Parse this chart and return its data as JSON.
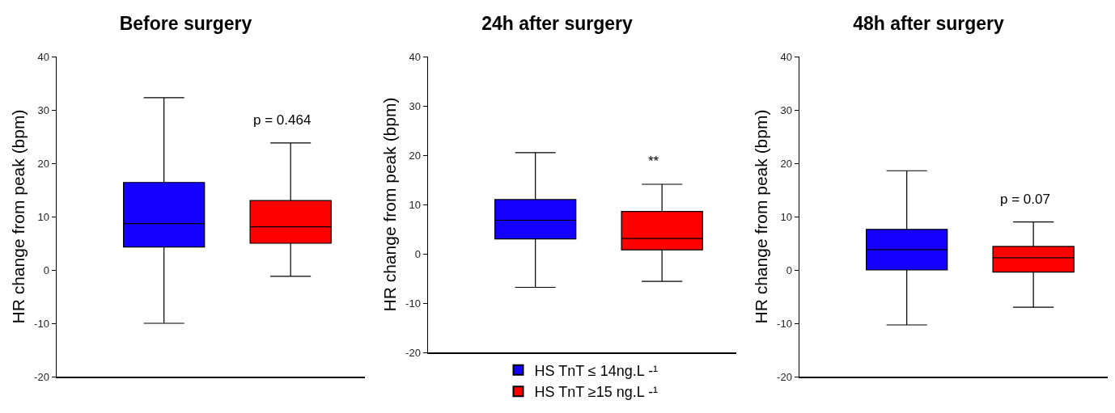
{
  "chart_data": [
    {
      "type": "box",
      "title": "Before surgery",
      "ylabel": "HR change from peak (bpm)",
      "categories": [
        null
      ],
      "ylim": [
        -20,
        40
      ],
      "yticks": [
        -20,
        -10,
        0,
        10,
        20,
        30,
        40
      ],
      "grid": false,
      "legend": false,
      "annotations": [
        "p = 0.464"
      ],
      "series": [
        {
          "color": "#1400ff",
          "boxes": [
            {
              "low": -10,
              "q1": 4.3,
              "median": 8.7,
              "q3": 16.4,
              "high": 32.3
            }
          ]
        },
        {
          "color": "#ff0000",
          "boxes": [
            {
              "low": -1.2,
              "q1": 5,
              "median": 8.1,
              "q3": 13,
              "high": 23.8
            }
          ]
        }
      ]
    },
    {
      "type": "box",
      "title": "24h after surgery",
      "ylabel": "HR change from peak (bpm)",
      "categories": [
        null
      ],
      "ylim": [
        -20,
        40
      ],
      "yticks": [
        -20,
        -10,
        0,
        10,
        20,
        30,
        40
      ],
      "grid": false,
      "legend": "bottom",
      "annotations": [
        "**"
      ],
      "series": [
        {
          "name": "HS TnT ≤ 14ng.L -¹",
          "color": "#1400ff",
          "boxes": [
            {
              "low": -6.8,
              "q1": 3,
              "median": 6.8,
              "q3": 11,
              "high": 20.5
            }
          ]
        },
        {
          "name": "HS TnT ≥15 ng.L -¹",
          "color": "#ff0000",
          "boxes": [
            {
              "low": -5.6,
              "q1": 0.8,
              "median": 3.1,
              "q3": 8.6,
              "high": 14.1
            }
          ]
        }
      ]
    },
    {
      "type": "box",
      "title": "48h after surgery",
      "ylabel": "HR change from peak (bpm)",
      "categories": [
        null
      ],
      "ylim": [
        -20,
        40
      ],
      "yticks": [
        -20,
        -10,
        0,
        10,
        20,
        30,
        40
      ],
      "grid": false,
      "legend": false,
      "annotations": [
        "p = 0.07"
      ],
      "series": [
        {
          "color": "#1400ff",
          "boxes": [
            {
              "low": -10.3,
              "q1": 0,
              "median": 3.8,
              "q3": 7.6,
              "high": 18.6
            }
          ]
        },
        {
          "color": "#ff0000",
          "boxes": [
            {
              "low": -7,
              "q1": -0.4,
              "median": 2.3,
              "q3": 4.4,
              "high": 9
            }
          ]
        }
      ]
    }
  ]
}
